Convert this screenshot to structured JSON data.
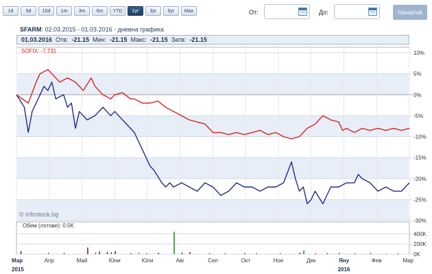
{
  "period_buttons": [
    "1d",
    "5d",
    "10d",
    "1m",
    "3m",
    "6m",
    "YTD",
    "1yr",
    "3yr",
    "5yr",
    "Max"
  ],
  "period_buttons_display": [
    "1d",
    "5d",
    "10d",
    "1m",
    "3m",
    "6m",
    "YTD",
    "1уг",
    "3уг",
    "5уг",
    "Max"
  ],
  "active_period": "1уг",
  "date_from_label": "От:",
  "date_to_label": "До:",
  "date_from_value": "",
  "date_to_value": "",
  "search_button": "Начертай",
  "title": {
    "ticker": "SFARM",
    "range": ": 02.03.2015 - 01.03.2016 - дневна графика"
  },
  "infobar": {
    "date": "01.03.2016",
    "open_label": "Отв:",
    "open": "-21.15",
    "min_label": "Мин:",
    "min": "-21.15",
    "max_label": "Макс:",
    "max": "-21.15",
    "close_label": "Затв:",
    "close": "-21.15"
  },
  "index_label": "SOFIX: -7.731",
  "watermark": "© infostock.bg",
  "volume_label": "Обем (лотове): 0.5K",
  "colors": {
    "sfarm": "#1f2c84",
    "sofix": "#d6241c",
    "band": "#e8eef8",
    "axis": "#555555"
  },
  "chart_data": {
    "type": "line",
    "xlabel": "",
    "ylabel": "",
    "ylim": [
      -30,
      10
    ],
    "yticks": [
      "10%",
      "5%",
      "0%",
      "-5%",
      "-10%",
      "-15%",
      "-20%",
      "-25%",
      "-30%"
    ],
    "xticks": [
      "Мар",
      "Апр",
      "Май",
      "Юни",
      "Юли",
      "Авг",
      "Сеп",
      "Окт",
      "Ное",
      "Дек",
      "Яну",
      "Фев",
      "Мар"
    ],
    "year_labels": [
      "2015",
      "2016"
    ],
    "series": [
      {
        "name": "SFARM",
        "x": [
          0,
          0.02,
          0.03,
          0.04,
          0.05,
          0.06,
          0.07,
          0.08,
          0.09,
          0.1,
          0.12,
          0.13,
          0.14,
          0.15,
          0.16,
          0.18,
          0.2,
          0.22,
          0.23,
          0.24,
          0.25,
          0.27,
          0.3,
          0.32,
          0.34,
          0.35,
          0.37,
          0.38,
          0.39,
          0.4,
          0.42,
          0.44,
          0.46,
          0.48,
          0.5,
          0.52,
          0.54,
          0.56,
          0.58,
          0.6,
          0.62,
          0.64,
          0.66,
          0.68,
          0.7,
          0.71,
          0.72,
          0.73,
          0.74,
          0.75,
          0.76,
          0.78,
          0.8,
          0.82,
          0.84,
          0.86,
          0.87,
          0.88,
          0.9,
          0.92,
          0.94,
          0.96,
          0.98,
          1.0
        ],
        "values": [
          0,
          -3,
          -9,
          -4,
          -2,
          0,
          2,
          1,
          3,
          -1,
          0,
          -3,
          -2,
          -8,
          -4,
          -6,
          -5,
          -3,
          -4,
          -5,
          -4,
          -6,
          -9,
          -13,
          -17,
          -18,
          -21,
          -22,
          -21,
          -22,
          -21,
          -22,
          -23,
          -21,
          -22,
          -24,
          -23,
          -21,
          -22,
          -22,
          -23,
          -22,
          -22,
          -21,
          -16,
          -20,
          -23,
          -22,
          -26,
          -25,
          -23,
          -26,
          -22,
          -22,
          -21,
          -21,
          -19,
          -20,
          -21,
          -23,
          -22,
          -23,
          -23,
          -21
        ]
      },
      {
        "name": "SOFIX",
        "x": [
          0,
          0.03,
          0.05,
          0.06,
          0.08,
          0.09,
          0.1,
          0.11,
          0.13,
          0.15,
          0.17,
          0.19,
          0.2,
          0.22,
          0.24,
          0.25,
          0.27,
          0.29,
          0.3,
          0.32,
          0.34,
          0.36,
          0.38,
          0.4,
          0.42,
          0.44,
          0.46,
          0.48,
          0.5,
          0.52,
          0.54,
          0.56,
          0.58,
          0.6,
          0.62,
          0.64,
          0.66,
          0.68,
          0.7,
          0.72,
          0.74,
          0.76,
          0.78,
          0.8,
          0.82,
          0.83,
          0.84,
          0.86,
          0.88,
          0.9,
          0.92,
          0.94,
          0.96,
          0.98,
          1.0
        ],
        "values": [
          0,
          -2,
          3,
          5,
          6,
          5,
          4,
          3,
          4,
          3,
          1,
          4,
          2,
          0,
          -1,
          0,
          0.5,
          -1,
          -1,
          -2,
          -2,
          -1.5,
          -3,
          -4,
          -5,
          -6,
          -6.5,
          -7,
          -9,
          -9,
          -9.5,
          -9,
          -9.5,
          -9,
          -8.5,
          -9.5,
          -9,
          -10,
          -10.5,
          -10,
          -8,
          -7,
          -5,
          -6,
          -6.5,
          -8.5,
          -8,
          -9,
          -8,
          -8.5,
          -8,
          -8.5,
          -8,
          -8.5,
          -8
        ]
      }
    ],
    "volume": {
      "ylim": [
        0,
        500
      ],
      "yticks": [
        "400K",
        "200K",
        "0K"
      ],
      "bars": [
        {
          "x": 0.01,
          "v": 60
        },
        {
          "x": 0.08,
          "v": 25
        },
        {
          "x": 0.12,
          "v": 20
        },
        {
          "x": 0.18,
          "v": 130
        },
        {
          "x": 0.2,
          "v": 30
        },
        {
          "x": 0.21,
          "v": 50
        },
        {
          "x": 0.23,
          "v": 45
        },
        {
          "x": 0.24,
          "v": 40
        },
        {
          "x": 0.25,
          "v": 60
        },
        {
          "x": 0.29,
          "v": 20
        },
        {
          "x": 0.31,
          "v": 25
        },
        {
          "x": 0.33,
          "v": 15
        },
        {
          "x": 0.36,
          "v": 25
        },
        {
          "x": 0.4,
          "v": 440
        },
        {
          "x": 0.42,
          "v": 30
        },
        {
          "x": 0.44,
          "v": 40
        },
        {
          "x": 0.49,
          "v": 20
        },
        {
          "x": 0.53,
          "v": 15
        },
        {
          "x": 0.58,
          "v": 20
        },
        {
          "x": 0.61,
          "v": 20
        },
        {
          "x": 0.67,
          "v": 15
        },
        {
          "x": 0.72,
          "v": 25
        },
        {
          "x": 0.73,
          "v": 70
        },
        {
          "x": 0.76,
          "v": 15
        },
        {
          "x": 0.79,
          "v": 20
        },
        {
          "x": 0.82,
          "v": 25
        },
        {
          "x": 0.86,
          "v": 15
        },
        {
          "x": 0.9,
          "v": 20
        },
        {
          "x": 0.94,
          "v": 10
        },
        {
          "x": 0.97,
          "v": 15
        }
      ]
    }
  }
}
